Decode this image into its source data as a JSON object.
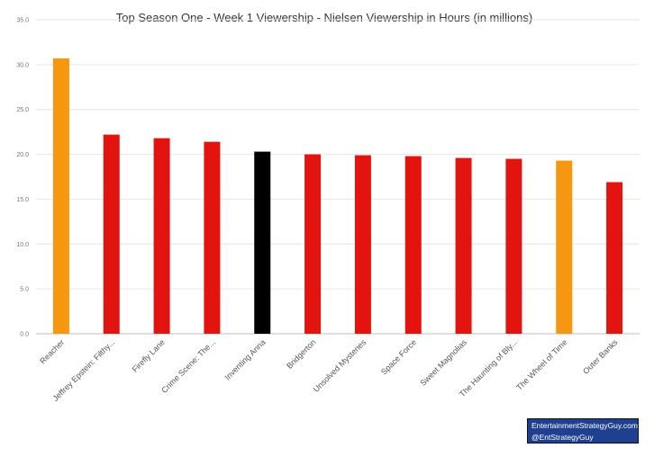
{
  "chart_data": {
    "type": "bar",
    "title": "Top Season One - Week 1 Viewership - Nielsen Viewership in Hours (in millions)",
    "xlabel": "",
    "ylabel": "",
    "ylim": [
      0,
      35
    ],
    "yticks": [
      "0.0",
      "5.0",
      "10.0",
      "15.0",
      "20.0",
      "25.0",
      "30.0",
      "35.0"
    ],
    "grid": true,
    "categories": [
      "Reacher",
      "Jeffrey Epstein: Filthy...",
      "Firefly Lane",
      "Crime Scene: The...",
      "Inventing Anna",
      "Bridgerton",
      "Unsolved Mysteries",
      "Space Force",
      "Sweet Magnolias",
      "The Haunting of Bly...",
      "The Wheel of Time",
      "Outer Banks"
    ],
    "values": [
      30.7,
      22.2,
      21.8,
      21.4,
      20.3,
      20.0,
      19.9,
      19.8,
      19.6,
      19.5,
      19.3,
      16.9
    ],
    "bar_colors": [
      "#f7960f",
      "#e3140f",
      "#e3140f",
      "#e3140f",
      "#000000",
      "#e3140f",
      "#e3140f",
      "#e3140f",
      "#e3140f",
      "#e3140f",
      "#f7960f",
      "#e3140f"
    ]
  },
  "credit": {
    "line1": "EntertainmentStrategyGuy.com",
    "line2": "@EntStrategyGuy"
  }
}
